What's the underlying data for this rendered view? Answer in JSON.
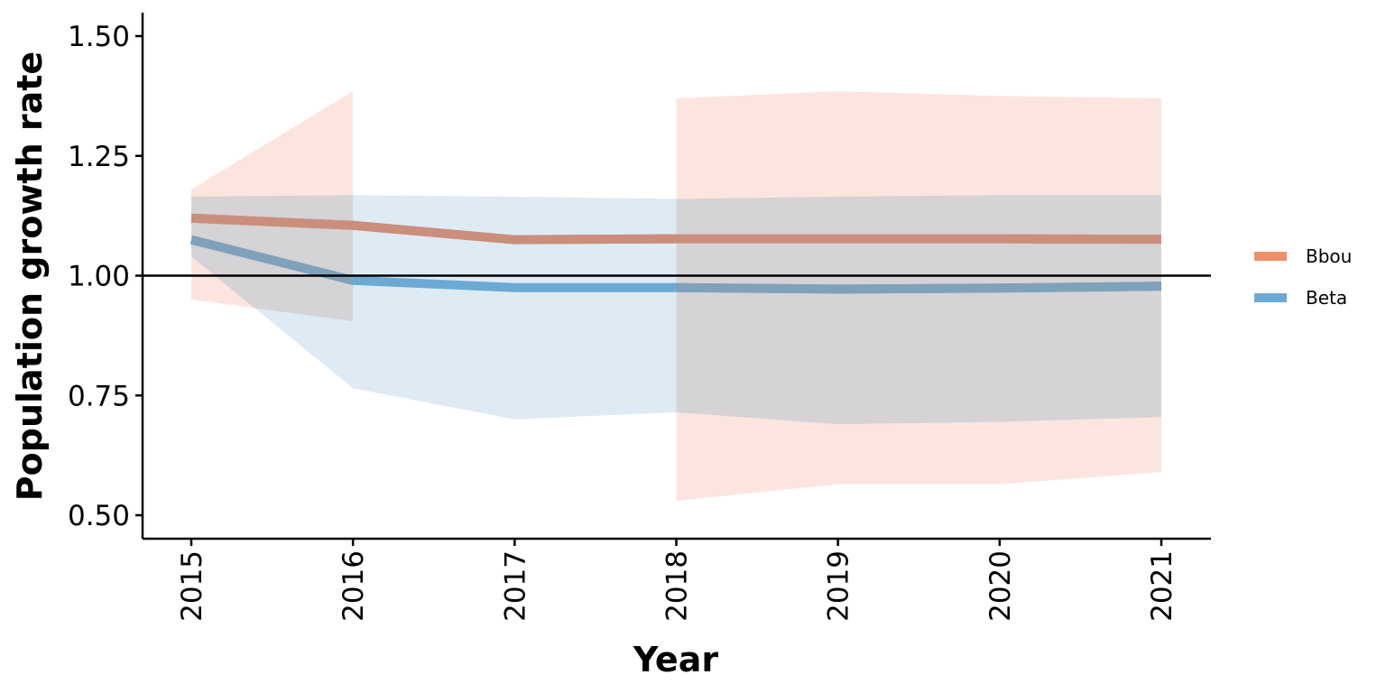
{
  "chart_data": {
    "type": "line",
    "x": [
      2015,
      2016,
      2017,
      2018,
      2019,
      2020,
      2021
    ],
    "xlabel": "Year",
    "ylabel": "Population growth rate",
    "ylim": [
      0.45,
      1.55
    ],
    "yticks": [
      0.5,
      0.75,
      1.0,
      1.25,
      1.5
    ],
    "ytick_labels": [
      "0.50",
      "0.75",
      "1.00",
      "1.25",
      "1.50"
    ],
    "xtick_labels": [
      "2015",
      "2016",
      "2017",
      "2018",
      "2019",
      "2020",
      "2021"
    ],
    "reference_line": 1.0,
    "grid": false,
    "legend_position": "right",
    "series": [
      {
        "name": "Bbou",
        "color": "#F08E6A",
        "line_color": "#D08E7C",
        "band_color": "#FAE1D8",
        "values": [
          1.12,
          1.105,
          1.075,
          1.077,
          1.077,
          1.077,
          1.076
        ],
        "bands": [
          {
            "x": [
              2015,
              2016
            ],
            "lower": [
              0.95,
              0.905
            ],
            "upper": [
              1.18,
              1.385
            ]
          },
          {
            "x": [
              2018,
              2019,
              2020,
              2021
            ],
            "lower": [
              0.53,
              0.565,
              0.565,
              0.59
            ],
            "upper": [
              1.37,
              1.385,
              1.375,
              1.37
            ]
          }
        ]
      },
      {
        "name": "Beta",
        "color": "#6BAAD3",
        "line_color": "#6BAAD3",
        "band_color": "#D8E8F2",
        "values": [
          1.075,
          0.99,
          0.975,
          0.975,
          0.972,
          0.974,
          0.978
        ],
        "bands": [
          {
            "x": [
              2015,
              2016,
              2017,
              2018,
              2019,
              2020,
              2021
            ],
            "lower": [
              1.04,
              0.765,
              0.7,
              0.715,
              0.69,
              0.695,
              0.705
            ],
            "upper": [
              1.165,
              1.168,
              1.165,
              1.16,
              1.165,
              1.168,
              1.168
            ]
          }
        ]
      }
    ],
    "overlap_color": "#D5D3D6",
    "overlap_line_colors": {
      "Bbou": "#CB8E7D",
      "Beta": "#7FA1BA"
    }
  }
}
